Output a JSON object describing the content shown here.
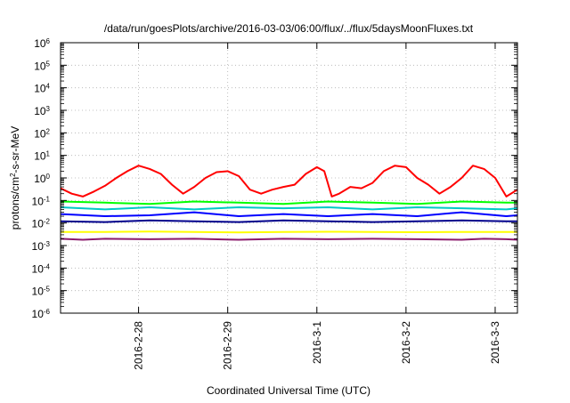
{
  "chart_data": {
    "type": "line",
    "title": "/data/run/goesPlots/archive/2016-03-03/06:00/flux/../flux/5daysMoonFluxes.txt",
    "xlabel": "Coordinated Universal Time (UTC)",
    "ylabel": {
      "base": "protons/cm",
      "sup": "2",
      "rest": "-s-sr-MeV"
    },
    "y_scale": "log",
    "ylim": [
      1e-06,
      1000000.0
    ],
    "y_ticks": [
      {
        "value": 1e-06,
        "base": "10",
        "exp": "-6"
      },
      {
        "value": 1e-05,
        "base": "10",
        "exp": "-5"
      },
      {
        "value": 0.0001,
        "base": "10",
        "exp": "-4"
      },
      {
        "value": 0.001,
        "base": "10",
        "exp": "-3"
      },
      {
        "value": 0.01,
        "base": "10",
        "exp": "-2"
      },
      {
        "value": 0.1,
        "base": "10",
        "exp": "-1"
      },
      {
        "value": 1,
        "base": "10",
        "exp": "0"
      },
      {
        "value": 10,
        "base": "10",
        "exp": "1"
      },
      {
        "value": 100,
        "base": "10",
        "exp": "2"
      },
      {
        "value": 1000,
        "base": "10",
        "exp": "3"
      },
      {
        "value": 10000,
        "base": "10",
        "exp": "4"
      },
      {
        "value": 100000,
        "base": "10",
        "exp": "5"
      },
      {
        "value": 1000000,
        "base": "10",
        "exp": "6"
      }
    ],
    "xlim": [
      "2016-02-27T03:00",
      "2016-03-03T06:00"
    ],
    "x_ticks": [
      {
        "value": "2016-02-28T00:00",
        "label": "2016-2-28"
      },
      {
        "value": "2016-02-29T00:00",
        "label": "2016-2-29"
      },
      {
        "value": "2016-03-01T00:00",
        "label": "2016-3-1"
      },
      {
        "value": "2016-03-02T00:00",
        "label": "2016-3-2"
      },
      {
        "value": "2016-03-03T00:00",
        "label": "2016-3-3"
      }
    ],
    "grid": true,
    "series": [
      {
        "color": "#ff0000",
        "points": [
          [
            "2016-02-27T03:00",
            0.35
          ],
          [
            "2016-02-27T06:00",
            0.2
          ],
          [
            "2016-02-27T09:00",
            0.15
          ],
          [
            "2016-02-27T12:00",
            0.25
          ],
          [
            "2016-02-27T15:00",
            0.45
          ],
          [
            "2016-02-27T18:00",
            1.0
          ],
          [
            "2016-02-27T21:00",
            2.0
          ],
          [
            "2016-02-28T00:00",
            3.5
          ],
          [
            "2016-02-28T03:00",
            2.5
          ],
          [
            "2016-02-28T06:00",
            1.5
          ],
          [
            "2016-02-28T09:00",
            0.5
          ],
          [
            "2016-02-28T12:00",
            0.2
          ],
          [
            "2016-02-28T15:00",
            0.4
          ],
          [
            "2016-02-28T18:00",
            1.0
          ],
          [
            "2016-02-28T21:00",
            1.8
          ],
          [
            "2016-02-29T00:00",
            2.0
          ],
          [
            "2016-02-29T03:00",
            1.2
          ],
          [
            "2016-02-29T06:00",
            0.3
          ],
          [
            "2016-02-29T09:00",
            0.2
          ],
          [
            "2016-02-29T12:00",
            0.3
          ],
          [
            "2016-02-29T15:00",
            0.4
          ],
          [
            "2016-02-29T18:00",
            0.5
          ],
          [
            "2016-02-29T21:00",
            1.5
          ],
          [
            "2016-03-01T00:00",
            3.0
          ],
          [
            "2016-03-01T02:00",
            2.0
          ],
          [
            "2016-03-01T04:00",
            0.15
          ],
          [
            "2016-03-01T06:00",
            0.2
          ],
          [
            "2016-03-01T09:00",
            0.4
          ],
          [
            "2016-03-01T12:00",
            0.35
          ],
          [
            "2016-03-01T15:00",
            0.6
          ],
          [
            "2016-03-01T18:00",
            2.0
          ],
          [
            "2016-03-01T21:00",
            3.5
          ],
          [
            "2016-03-02T00:00",
            3.0
          ],
          [
            "2016-03-02T03:00",
            1.0
          ],
          [
            "2016-03-02T06:00",
            0.5
          ],
          [
            "2016-03-02T09:00",
            0.2
          ],
          [
            "2016-03-02T12:00",
            0.4
          ],
          [
            "2016-03-02T15:00",
            1.0
          ],
          [
            "2016-03-02T18:00",
            3.5
          ],
          [
            "2016-03-02T21:00",
            2.5
          ],
          [
            "2016-03-03T00:00",
            1.0
          ],
          [
            "2016-03-03T03:00",
            0.15
          ],
          [
            "2016-03-03T06:00",
            0.3
          ]
        ]
      },
      {
        "color": "#00ff00",
        "points": [
          [
            "2016-02-27T03:00",
            0.09
          ],
          [
            "2016-02-27T15:00",
            0.08
          ],
          [
            "2016-02-28T03:00",
            0.07
          ],
          [
            "2016-02-28T15:00",
            0.09
          ],
          [
            "2016-02-29T03:00",
            0.08
          ],
          [
            "2016-02-29T15:00",
            0.07
          ],
          [
            "2016-03-01T03:00",
            0.09
          ],
          [
            "2016-03-01T15:00",
            0.08
          ],
          [
            "2016-03-02T03:00",
            0.07
          ],
          [
            "2016-03-02T15:00",
            0.09
          ],
          [
            "2016-03-03T03:00",
            0.08
          ],
          [
            "2016-03-03T06:00",
            0.08
          ]
        ]
      },
      {
        "color": "#00c8c8",
        "points": [
          [
            "2016-02-27T03:00",
            0.05
          ],
          [
            "2016-02-27T15:00",
            0.04
          ],
          [
            "2016-02-28T03:00",
            0.05
          ],
          [
            "2016-02-28T15:00",
            0.04
          ],
          [
            "2016-02-29T03:00",
            0.05
          ],
          [
            "2016-02-29T15:00",
            0.045
          ],
          [
            "2016-03-01T03:00",
            0.05
          ],
          [
            "2016-03-01T15:00",
            0.04
          ],
          [
            "2016-03-02T03:00",
            0.05
          ],
          [
            "2016-03-02T15:00",
            0.045
          ],
          [
            "2016-03-03T03:00",
            0.04
          ],
          [
            "2016-03-03T06:00",
            0.045
          ]
        ]
      },
      {
        "color": "#0000ff",
        "points": [
          [
            "2016-02-27T03:00",
            0.025
          ],
          [
            "2016-02-27T15:00",
            0.02
          ],
          [
            "2016-02-28T03:00",
            0.022
          ],
          [
            "2016-02-28T15:00",
            0.03
          ],
          [
            "2016-02-29T03:00",
            0.02
          ],
          [
            "2016-02-29T15:00",
            0.025
          ],
          [
            "2016-03-01T03:00",
            0.02
          ],
          [
            "2016-03-01T15:00",
            0.025
          ],
          [
            "2016-03-02T03:00",
            0.02
          ],
          [
            "2016-03-02T15:00",
            0.03
          ],
          [
            "2016-03-03T03:00",
            0.02
          ],
          [
            "2016-03-03T06:00",
            0.022
          ]
        ]
      },
      {
        "color": "#00008b",
        "points": [
          [
            "2016-02-27T03:00",
            0.012
          ],
          [
            "2016-02-27T15:00",
            0.011
          ],
          [
            "2016-02-28T03:00",
            0.013
          ],
          [
            "2016-02-28T15:00",
            0.012
          ],
          [
            "2016-02-29T03:00",
            0.011
          ],
          [
            "2016-02-29T15:00",
            0.013
          ],
          [
            "2016-03-01T03:00",
            0.012
          ],
          [
            "2016-03-01T15:00",
            0.011
          ],
          [
            "2016-03-02T03:00",
            0.012
          ],
          [
            "2016-03-02T15:00",
            0.013
          ],
          [
            "2016-03-03T03:00",
            0.012
          ],
          [
            "2016-03-03T06:00",
            0.012
          ]
        ]
      },
      {
        "color": "#ffff00",
        "points": [
          [
            "2016-02-27T03:00",
            0.004
          ],
          [
            "2016-02-27T15:00",
            0.004
          ],
          [
            "2016-02-28T03:00",
            0.0042
          ],
          [
            "2016-02-28T15:00",
            0.004
          ],
          [
            "2016-02-29T03:00",
            0.0038
          ],
          [
            "2016-02-29T15:00",
            0.004
          ],
          [
            "2016-03-01T03:00",
            0.0041
          ],
          [
            "2016-03-01T15:00",
            0.004
          ],
          [
            "2016-03-02T03:00",
            0.0039
          ],
          [
            "2016-03-02T15:00",
            0.004
          ],
          [
            "2016-03-03T03:00",
            0.004
          ],
          [
            "2016-03-03T06:00",
            0.004
          ]
        ]
      },
      {
        "color": "#8b1a6b",
        "points": [
          [
            "2016-02-27T03:00",
            0.002
          ],
          [
            "2016-02-27T09:00",
            0.0018
          ],
          [
            "2016-02-27T15:00",
            0.002
          ],
          [
            "2016-02-28T03:00",
            0.0019
          ],
          [
            "2016-02-28T15:00",
            0.002
          ],
          [
            "2016-02-29T03:00",
            0.0018
          ],
          [
            "2016-02-29T15:00",
            0.002
          ],
          [
            "2016-03-01T03:00",
            0.0019
          ],
          [
            "2016-03-01T15:00",
            0.002
          ],
          [
            "2016-03-02T03:00",
            0.0019
          ],
          [
            "2016-03-02T15:00",
            0.0018
          ],
          [
            "2016-03-02T21:00",
            0.002
          ],
          [
            "2016-03-03T03:00",
            0.0019
          ],
          [
            "2016-03-03T06:00",
            0.0018
          ]
        ]
      }
    ]
  }
}
